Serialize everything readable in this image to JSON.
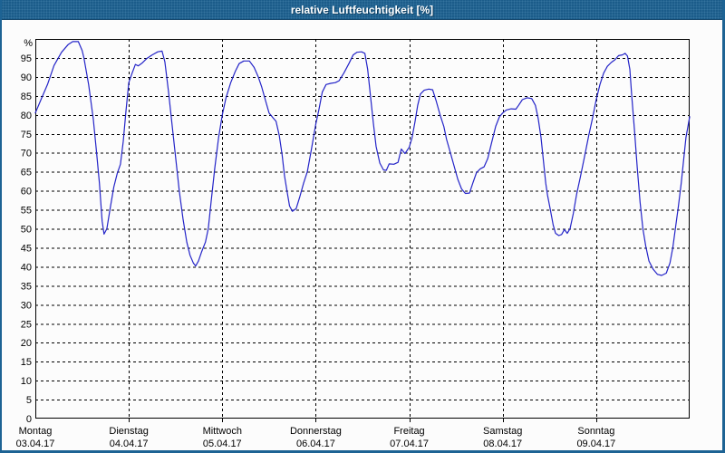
{
  "window": {
    "title": "relative Luftfeuchtigkeit [%]"
  },
  "colors": {
    "frame_blue": "#1d6394",
    "titlebar_text": "#ffffff",
    "curve": "#2424c8",
    "grid": "#000000",
    "text": "#000000",
    "background": "#fcfcfc"
  },
  "chart_data": {
    "type": "line",
    "title": "relative Luftfeuchtigkeit [%]",
    "ylabel_unit": "%",
    "ylim": [
      0,
      100
    ],
    "ytick_labels": [
      "0",
      "5",
      "10",
      "15",
      "20",
      "25",
      "30",
      "35",
      "40",
      "45",
      "50",
      "55",
      "60",
      "65",
      "70",
      "75",
      "80",
      "85",
      "90",
      "95"
    ],
    "grid": "dashed",
    "legend_position": "none",
    "x_axis_days": [
      {
        "name": "Montag",
        "date": "03.04.17"
      },
      {
        "name": "Dienstag",
        "date": "04.04.17"
      },
      {
        "name": "Mittwoch",
        "date": "05.04.17"
      },
      {
        "name": "Donnerstag",
        "date": "06.04.17"
      },
      {
        "name": "Freitag",
        "date": "07.04.17"
      },
      {
        "name": "Samstag",
        "date": "08.04.17"
      },
      {
        "name": "Sonntag",
        "date": "09.04.17"
      }
    ],
    "series": [
      {
        "name": "relative Luftfeuchtigkeit [%]",
        "color": "#2424c8",
        "points_t_days_value_pct": [
          [
            0.0,
            80.5
          ],
          [
            0.06,
            84
          ],
          [
            0.13,
            88
          ],
          [
            0.2,
            93
          ],
          [
            0.28,
            96.5
          ],
          [
            0.35,
            98.5
          ],
          [
            0.4,
            99.3
          ],
          [
            0.46,
            99.3
          ],
          [
            0.5,
            97
          ],
          [
            0.52,
            95
          ],
          [
            0.57,
            88
          ],
          [
            0.62,
            79
          ],
          [
            0.655,
            70
          ],
          [
            0.685,
            62
          ],
          [
            0.715,
            52
          ],
          [
            0.735,
            48.6
          ],
          [
            0.765,
            50
          ],
          [
            0.805,
            56
          ],
          [
            0.84,
            61
          ],
          [
            0.875,
            64.5
          ],
          [
            0.91,
            67
          ],
          [
            0.94,
            73
          ],
          [
            0.97,
            81
          ],
          [
            1.0,
            88.5
          ],
          [
            1.035,
            91
          ],
          [
            1.07,
            93.3
          ],
          [
            1.1,
            92.9
          ],
          [
            1.14,
            93.6
          ],
          [
            1.19,
            94.8
          ],
          [
            1.25,
            95.8
          ],
          [
            1.31,
            96.6
          ],
          [
            1.355,
            96.8
          ],
          [
            1.385,
            94
          ],
          [
            1.425,
            86
          ],
          [
            1.46,
            78
          ],
          [
            1.5,
            69
          ],
          [
            1.54,
            60
          ],
          [
            1.58,
            52.5
          ],
          [
            1.62,
            46.5
          ],
          [
            1.655,
            43
          ],
          [
            1.69,
            41
          ],
          [
            1.715,
            40.2
          ],
          [
            1.745,
            41.5
          ],
          [
            1.78,
            44
          ],
          [
            1.82,
            46.5
          ],
          [
            1.85,
            50
          ],
          [
            1.88,
            57
          ],
          [
            1.92,
            66
          ],
          [
            1.96,
            74
          ],
          [
            2.0,
            80
          ],
          [
            2.04,
            84.5
          ],
          [
            2.09,
            88.5
          ],
          [
            2.14,
            91.5
          ],
          [
            2.18,
            93.5
          ],
          [
            2.23,
            94.2
          ],
          [
            2.29,
            94.2
          ],
          [
            2.34,
            92.5
          ],
          [
            2.385,
            90
          ],
          [
            2.42,
            87.5
          ],
          [
            2.46,
            84
          ],
          [
            2.5,
            80.5
          ],
          [
            2.54,
            79.3
          ],
          [
            2.575,
            78.3
          ],
          [
            2.61,
            74.5
          ],
          [
            2.64,
            69.5
          ],
          [
            2.665,
            64
          ],
          [
            2.695,
            59.5
          ],
          [
            2.72,
            56
          ],
          [
            2.75,
            54.6
          ],
          [
            2.79,
            55.3
          ],
          [
            2.83,
            58.5
          ],
          [
            2.87,
            62
          ],
          [
            2.91,
            65
          ],
          [
            2.95,
            70.5
          ],
          [
            3.0,
            77.5
          ],
          [
            3.035,
            81.5
          ],
          [
            3.07,
            86
          ],
          [
            3.11,
            88
          ],
          [
            3.16,
            88.3
          ],
          [
            3.21,
            88.5
          ],
          [
            3.25,
            89
          ],
          [
            3.3,
            91
          ],
          [
            3.355,
            93.5
          ],
          [
            3.4,
            95.8
          ],
          [
            3.44,
            96.5
          ],
          [
            3.49,
            96.6
          ],
          [
            3.525,
            96.2
          ],
          [
            3.555,
            92
          ],
          [
            3.585,
            85
          ],
          [
            3.615,
            78
          ],
          [
            3.645,
            71.7
          ],
          [
            3.685,
            67.3
          ],
          [
            3.725,
            65.5
          ],
          [
            3.755,
            65.4
          ],
          [
            3.785,
            67.1
          ],
          [
            3.835,
            67
          ],
          [
            3.88,
            67.5
          ],
          [
            3.915,
            71
          ],
          [
            3.955,
            69.8
          ],
          [
            4.0,
            71.5
          ],
          [
            4.03,
            74
          ],
          [
            4.06,
            78
          ],
          [
            4.09,
            82.5
          ],
          [
            4.12,
            85.5
          ],
          [
            4.16,
            86.5
          ],
          [
            4.21,
            86.8
          ],
          [
            4.25,
            86.6
          ],
          [
            4.29,
            83.5
          ],
          [
            4.33,
            80
          ],
          [
            4.37,
            77
          ],
          [
            4.4,
            73.5
          ],
          [
            4.44,
            70
          ],
          [
            4.48,
            66.5
          ],
          [
            4.52,
            63
          ],
          [
            4.56,
            60.5
          ],
          [
            4.6,
            59.3
          ],
          [
            4.645,
            59.4
          ],
          [
            4.68,
            62
          ],
          [
            4.72,
            64.8
          ],
          [
            4.76,
            65.8
          ],
          [
            4.8,
            66.3
          ],
          [
            4.84,
            68.5
          ],
          [
            4.88,
            72.5
          ],
          [
            4.925,
            77
          ],
          [
            4.965,
            79.5
          ],
          [
            5.0,
            80.5
          ],
          [
            5.04,
            81.3
          ],
          [
            5.09,
            81.6
          ],
          [
            5.14,
            81.5
          ],
          [
            5.17,
            82.5
          ],
          [
            5.21,
            84
          ],
          [
            5.26,
            84.5
          ],
          [
            5.31,
            84.3
          ],
          [
            5.35,
            82.5
          ],
          [
            5.38,
            79
          ],
          [
            5.41,
            74
          ],
          [
            5.435,
            68
          ],
          [
            5.46,
            62
          ],
          [
            5.48,
            58.8
          ],
          [
            5.51,
            55
          ],
          [
            5.54,
            51
          ],
          [
            5.565,
            48.8
          ],
          [
            5.6,
            48.2
          ],
          [
            5.63,
            48.5
          ],
          [
            5.66,
            49.8
          ],
          [
            5.69,
            48.8
          ],
          [
            5.72,
            50
          ],
          [
            5.755,
            54
          ],
          [
            5.79,
            59
          ],
          [
            5.83,
            63.5
          ],
          [
            5.875,
            69
          ],
          [
            5.92,
            74.5
          ],
          [
            5.96,
            79
          ],
          [
            6.0,
            84
          ],
          [
            6.04,
            88
          ],
          [
            6.08,
            91
          ],
          [
            6.12,
            92.8
          ],
          [
            6.16,
            93.8
          ],
          [
            6.2,
            94.5
          ],
          [
            6.24,
            95.6
          ],
          [
            6.28,
            95.8
          ],
          [
            6.31,
            96.2
          ],
          [
            6.335,
            95.5
          ],
          [
            6.36,
            92
          ],
          [
            6.38,
            85
          ],
          [
            6.41,
            76
          ],
          [
            6.44,
            66
          ],
          [
            6.47,
            57
          ],
          [
            6.5,
            50
          ],
          [
            6.53,
            45.5
          ],
          [
            6.565,
            41.5
          ],
          [
            6.61,
            39.3
          ],
          [
            6.655,
            38
          ],
          [
            6.7,
            37.7
          ],
          [
            6.75,
            38.3
          ],
          [
            6.79,
            41
          ],
          [
            6.82,
            45
          ],
          [
            6.85,
            50.5
          ],
          [
            6.88,
            56
          ],
          [
            6.91,
            62
          ],
          [
            6.935,
            68
          ],
          [
            6.96,
            74
          ],
          [
            7.0,
            79.5
          ]
        ]
      }
    ]
  }
}
